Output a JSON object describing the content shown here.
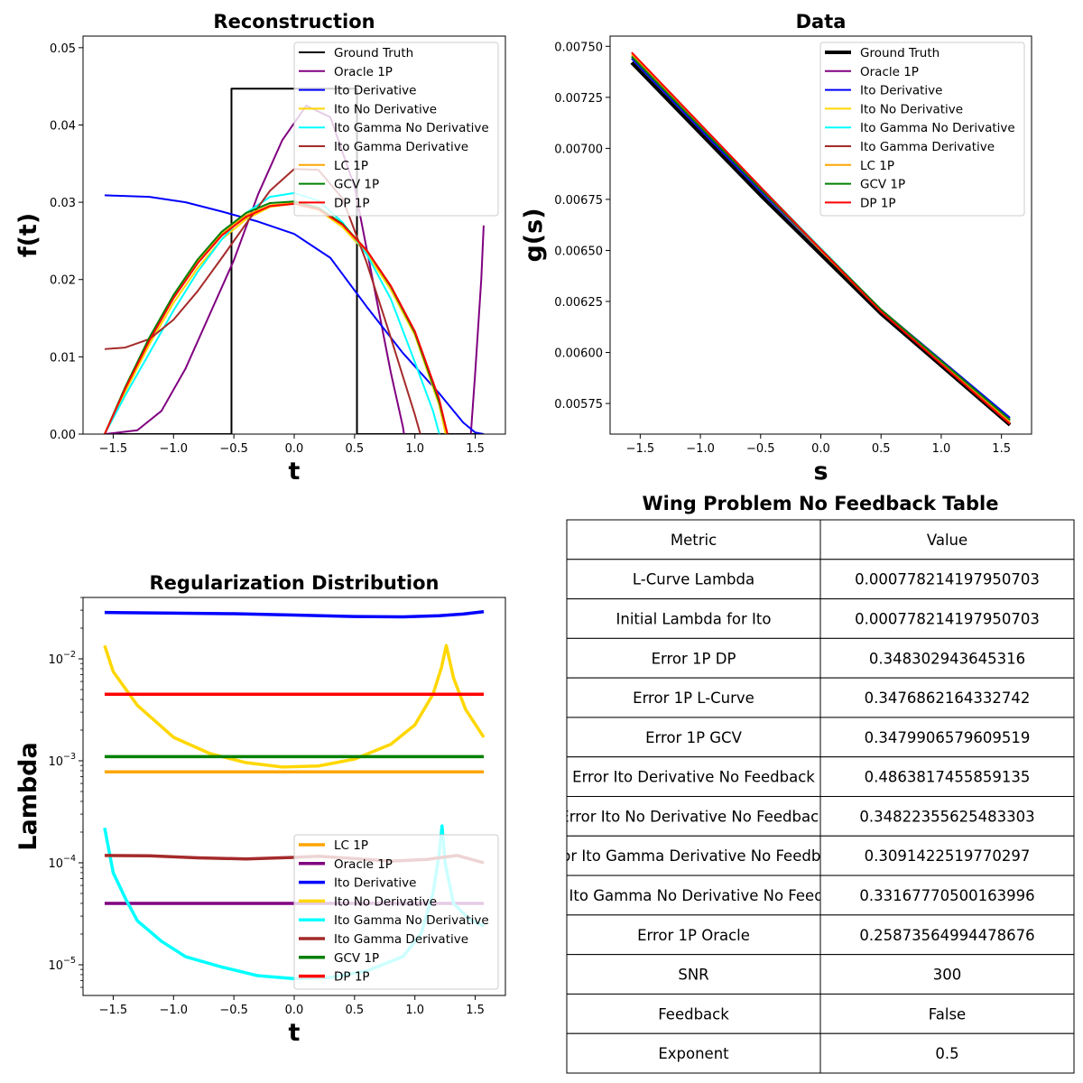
{
  "charts": [
    {
      "type": "line",
      "title": "Reconstruction",
      "xlabel": "t",
      "ylabel": "f(t)",
      "xlim": [
        -1.75,
        1.75
      ],
      "ylim": [
        0,
        0.0515
      ],
      "xticks": [
        -1.5,
        -1.0,
        -0.5,
        0.0,
        0.5,
        1.0,
        1.5
      ],
      "yticks": [
        0.0,
        0.01,
        0.02,
        0.03,
        0.04,
        0.05
      ],
      "xtick_labels": [
        "−1.5",
        "−1.0",
        "−0.5",
        "0.0",
        "0.5",
        "1.0",
        "1.5"
      ],
      "ytick_labels": [
        "0.00",
        "0.01",
        "0.02",
        "0.03",
        "0.04",
        "0.05"
      ],
      "legend": "upper-right",
      "series": [
        {
          "name": "Ground Truth",
          "color": "#000000",
          "width": 2,
          "x": [
            -1.5708,
            -0.52,
            -0.52,
            0.52,
            0.52,
            1.5708
          ],
          "y": [
            0,
            0,
            0.0447,
            0.0447,
            0,
            0
          ]
        },
        {
          "name": "Oracle 1P",
          "color": "#800080",
          "width": 2,
          "x": [
            -1.5708,
            -1.3,
            -1.1,
            -0.9,
            -0.7,
            -0.5,
            -0.3,
            -0.1,
            0.1,
            0.3,
            0.5,
            0.7,
            0.8,
            0.9,
            0.93,
            1.1,
            1.3,
            1.45,
            1.5,
            1.55,
            1.57
          ],
          "y": [
            0,
            0.0005,
            0.003,
            0.0085,
            0.0155,
            0.0225,
            0.031,
            0.038,
            0.0425,
            0.041,
            0.032,
            0.016,
            0.008,
            0.001,
            -0.002,
            -0.02,
            -0.02,
            -0.003,
            0.008,
            0.02,
            0.027
          ]
        },
        {
          "name": "Ito Derivative",
          "color": "#0000ff",
          "width": 2,
          "x": [
            -1.5708,
            -1.2,
            -0.9,
            -0.6,
            -0.3,
            0.0,
            0.3,
            0.6,
            0.9,
            1.2,
            1.4,
            1.5,
            1.5708
          ],
          "y": [
            0.0309,
            0.0307,
            0.03,
            0.0288,
            0.0275,
            0.0259,
            0.0228,
            0.0165,
            0.0105,
            0.0053,
            0.0015,
            0.0002,
            0
          ]
        },
        {
          "name": "Ito No Derivative",
          "color": "#ffd700",
          "width": 2,
          "x": [
            -1.5708,
            -1.4,
            -1.2,
            -1.0,
            -0.8,
            -0.6,
            -0.4,
            -0.2,
            0.0,
            0.2,
            0.4,
            0.6,
            0.8,
            1.0,
            1.2,
            1.27
          ],
          "y": [
            0,
            0.0055,
            0.0116,
            0.017,
            0.0215,
            0.0252,
            0.0278,
            0.0294,
            0.0298,
            0.029,
            0.0268,
            0.0234,
            0.0187,
            0.0128,
            0.0038,
            -0.001
          ]
        },
        {
          "name": "Ito Gamma No Derivative",
          "color": "#00ffff",
          "width": 2,
          "x": [
            -1.5708,
            -1.4,
            -1.2,
            -1.0,
            -0.8,
            -0.6,
            -0.4,
            -0.2,
            0.0,
            0.2,
            0.4,
            0.6,
            0.8,
            1.0,
            1.15,
            1.22
          ],
          "y": [
            0,
            0.005,
            0.0105,
            0.016,
            0.021,
            0.0252,
            0.0286,
            0.0307,
            0.0312,
            0.0302,
            0.0274,
            0.0233,
            0.0175,
            0.0093,
            0.003,
            -0.001
          ]
        },
        {
          "name": "Ito Gamma Derivative",
          "color": "#a52a2a",
          "width": 2,
          "x": [
            -1.5708,
            -1.4,
            -1.2,
            -1.0,
            -0.8,
            -0.6,
            -0.4,
            -0.2,
            0.0,
            0.2,
            0.4,
            0.6,
            0.8,
            1.0,
            1.1
          ],
          "y": [
            0.011,
            0.0112,
            0.0123,
            0.0148,
            0.0185,
            0.0228,
            0.0272,
            0.0315,
            0.0343,
            0.0342,
            0.0305,
            0.0222,
            0.0125,
            0.0025,
            -0.003
          ]
        },
        {
          "name": "LC 1P",
          "color": "#ffa500",
          "width": 2,
          "x": [
            -1.5708,
            -1.4,
            -1.2,
            -1.0,
            -0.8,
            -0.6,
            -0.4,
            -0.2,
            0.0,
            0.2,
            0.4,
            0.6,
            0.8,
            1.0,
            1.2,
            1.27
          ],
          "y": [
            0,
            0.006,
            0.0123,
            0.0178,
            0.0223,
            0.0259,
            0.0283,
            0.0296,
            0.0299,
            0.0292,
            0.0271,
            0.0237,
            0.0191,
            0.0132,
            0.0044,
            0
          ]
        },
        {
          "name": "GCV 1P",
          "color": "#008000",
          "width": 2,
          "x": [
            -1.5708,
            -1.4,
            -1.2,
            -1.0,
            -0.8,
            -0.6,
            -0.4,
            -0.2,
            0.0,
            0.2,
            0.4,
            0.6,
            0.8,
            1.0,
            1.2,
            1.27
          ],
          "y": [
            0,
            0.0061,
            0.0125,
            0.018,
            0.0226,
            0.0262,
            0.0286,
            0.0299,
            0.0301,
            0.0293,
            0.0272,
            0.0238,
            0.0191,
            0.0131,
            0.0042,
            0
          ]
        },
        {
          "name": "DP 1P",
          "color": "#ff0000",
          "width": 2,
          "x": [
            -1.5708,
            -1.4,
            -1.2,
            -1.0,
            -0.8,
            -0.6,
            -0.4,
            -0.2,
            0.0,
            0.2,
            0.4,
            0.6,
            0.8,
            1.0,
            1.2,
            1.27
          ],
          "y": [
            0,
            0.0059,
            0.0121,
            0.0176,
            0.0221,
            0.0257,
            0.0281,
            0.0295,
            0.0298,
            0.0291,
            0.0271,
            0.0238,
            0.0192,
            0.0133,
            0.0046,
            0
          ]
        }
      ]
    },
    {
      "type": "line",
      "title": "Data",
      "xlabel": "s",
      "ylabel": "g(s)",
      "xlim": [
        -1.75,
        1.75
      ],
      "ylim": [
        0.0056,
        0.00755
      ],
      "xticks": [
        -1.5,
        -1.0,
        -0.5,
        0.0,
        0.5,
        1.0,
        1.5
      ],
      "yticks": [
        0.00575,
        0.006,
        0.00625,
        0.0065,
        0.00675,
        0.007,
        0.00725,
        0.0075
      ],
      "xtick_labels": [
        "−1.5",
        "−1.0",
        "−0.5",
        "0.0",
        "0.5",
        "1.0",
        "1.5"
      ],
      "ytick_labels": [
        "0.00575",
        "0.00600",
        "0.00625",
        "0.00650",
        "0.00675",
        "0.00700",
        "0.00725",
        "0.00750"
      ],
      "legend": "upper-right",
      "series": [
        {
          "name": "Ground Truth",
          "color": "#000000",
          "width": 4,
          "x": [
            -1.5708,
            -0.5,
            0.5,
            1.5708
          ],
          "y": [
            0.00742,
            0.00677,
            0.00619,
            0.005645
          ]
        },
        {
          "name": "Oracle 1P",
          "color": "#800080",
          "width": 2,
          "x": [
            -1.5708,
            -0.5,
            0.5,
            1.5708
          ],
          "y": [
            0.00745,
            0.0068,
            0.00621,
            0.00566
          ]
        },
        {
          "name": "Ito Derivative",
          "color": "#0000ff",
          "width": 2,
          "x": [
            -1.5708,
            -0.5,
            0.5,
            1.5708
          ],
          "y": [
            0.00744,
            0.00679,
            0.00621,
            0.00568
          ]
        },
        {
          "name": "Ito No Derivative",
          "color": "#ffd700",
          "width": 2,
          "x": [
            -1.5708,
            -0.5,
            0.5,
            1.5708
          ],
          "y": [
            0.00746,
            0.00681,
            0.00621,
            0.00566
          ]
        },
        {
          "name": "Ito Gamma No Derivative",
          "color": "#00ffff",
          "width": 2,
          "x": [
            -1.5708,
            -0.5,
            0.5,
            1.5708
          ],
          "y": [
            0.00746,
            0.00681,
            0.00621,
            0.005665
          ]
        },
        {
          "name": "Ito Gamma Derivative",
          "color": "#a52a2a",
          "width": 2,
          "x": [
            -1.5708,
            -0.5,
            0.5,
            1.5708
          ],
          "y": [
            0.00745,
            0.0068,
            0.00621,
            0.00567
          ]
        },
        {
          "name": "LC 1P",
          "color": "#ffa500",
          "width": 2,
          "x": [
            -1.5708,
            -0.5,
            0.5,
            1.5708
          ],
          "y": [
            0.00746,
            0.0068,
            0.0062,
            0.00566
          ]
        },
        {
          "name": "GCV 1P",
          "color": "#008000",
          "width": 2,
          "x": [
            -1.5708,
            -0.5,
            0.5,
            1.5708
          ],
          "y": [
            0.00745,
            0.0068,
            0.00621,
            0.00567
          ]
        },
        {
          "name": "DP 1P",
          "color": "#ff0000",
          "width": 2,
          "x": [
            -1.5708,
            -0.5,
            0.5,
            1.5708
          ],
          "y": [
            0.00747,
            0.00681,
            0.0062,
            0.00565
          ]
        }
      ]
    },
    {
      "type": "line",
      "title": "Regularization Distribution",
      "xlabel": "t",
      "ylabel": "Lambda",
      "yscale": "log",
      "xlim": [
        -1.75,
        1.75
      ],
      "ylim": [
        5e-06,
        0.04
      ],
      "xticks": [
        -1.5,
        -1.0,
        -0.5,
        0.0,
        0.5,
        1.0,
        1.5
      ],
      "yticks": [
        1e-05,
        0.0001,
        0.001,
        0.01
      ],
      "xtick_labels": [
        "−1.5",
        "−1.0",
        "−0.5",
        "0.0",
        "0.5",
        "1.0",
        "1.5"
      ],
      "ytick_base": "10",
      "ytick_exponents": [
        "−5",
        "−4",
        "−3",
        "−2"
      ],
      "legend": "lower-right",
      "series": [
        {
          "name": "LC 1P",
          "color": "#ffa500",
          "width": 3.5,
          "x": [
            -1.5708,
            1.5708
          ],
          "y": [
            0.00078,
            0.00078
          ]
        },
        {
          "name": "Oracle 1P",
          "color": "#800080",
          "width": 3.5,
          "x": [
            -1.5708,
            1.5708
          ],
          "y": [
            4e-05,
            4e-05
          ]
        },
        {
          "name": "Ito Derivative",
          "color": "#0000ff",
          "width": 3.5,
          "x": [
            -1.5708,
            -1.0,
            -0.5,
            0.0,
            0.5,
            0.9,
            1.2,
            1.4,
            1.5708
          ],
          "y": [
            0.0285,
            0.0281,
            0.0277,
            0.0269,
            0.026,
            0.0258,
            0.0265,
            0.0275,
            0.029
          ]
        },
        {
          "name": "Ito No Derivative",
          "color": "#ffd700",
          "width": 3.5,
          "x": [
            -1.5708,
            -1.5,
            -1.3,
            -1.0,
            -0.7,
            -0.4,
            -0.1,
            0.2,
            0.5,
            0.8,
            1.0,
            1.15,
            1.22,
            1.26,
            1.32,
            1.42,
            1.5708
          ],
          "y": [
            0.0135,
            0.0075,
            0.0035,
            0.0017,
            0.00118,
            0.00096,
            0.00087,
            0.00089,
            0.00104,
            0.00145,
            0.00225,
            0.0045,
            0.0082,
            0.0135,
            0.0065,
            0.0032,
            0.0017
          ]
        },
        {
          "name": "Ito Gamma No Derivative",
          "color": "#00ffff",
          "width": 3.5,
          "x": [
            -1.5708,
            -1.5,
            -1.4,
            -1.3,
            -1.1,
            -0.9,
            -0.6,
            -0.3,
            0.0,
            0.3,
            0.6,
            0.9,
            1.05,
            1.15,
            1.2,
            1.225,
            1.25,
            1.32,
            1.45,
            1.5708
          ],
          "y": [
            0.00022,
            8e-05,
            4.5e-05,
            2.7e-05,
            1.7e-05,
            1.2e-05,
            9.5e-06,
            7.8e-06,
            7.3e-06,
            7.5e-06,
            8.7e-06,
            1.2e-05,
            2e-05,
            5e-05,
            0.00012,
            0.00023,
            0.0001,
            4e-05,
            2.8e-05,
            2.4e-05
          ]
        },
        {
          "name": "Ito Gamma Derivative",
          "color": "#a52a2a",
          "width": 3.5,
          "x": [
            -1.5708,
            -1.2,
            -0.8,
            -0.4,
            0.0,
            0.2,
            0.5,
            0.8,
            1.1,
            1.35,
            1.5708
          ],
          "y": [
            0.000118,
            0.000117,
            0.000112,
            0.000109,
            0.000113,
            0.000116,
            0.00011,
            0.000104,
            0.000108,
            0.000118,
            0.0001
          ]
        },
        {
          "name": "GCV 1P",
          "color": "#008000",
          "width": 3.5,
          "x": [
            -1.5708,
            1.5708
          ],
          "y": [
            0.0011,
            0.0011
          ]
        },
        {
          "name": "DP 1P",
          "color": "#ff0000",
          "width": 3.5,
          "x": [
            -1.5708,
            1.5708
          ],
          "y": [
            0.0045,
            0.0045
          ]
        }
      ]
    }
  ],
  "table": {
    "title": "Wing Problem No Feedback Table",
    "headers": [
      "Metric",
      "Value"
    ],
    "rows": [
      [
        "L-Curve Lambda",
        "0.000778214197950703"
      ],
      [
        "Initial Lambda for Ito",
        "0.000778214197950703"
      ],
      [
        "Error 1P DP",
        "0.348302943645316"
      ],
      [
        "Error 1P L-Curve",
        "0.3476862164332742"
      ],
      [
        "Error 1P GCV",
        "0.3479906579609519"
      ],
      [
        "Error Ito Derivative No Feedback",
        "0.4863817455859135"
      ],
      [
        "Error Ito No Derivative No Feedback",
        "0.34822355625483303"
      ],
      [
        "Error Ito Gamma Derivative No Feedback",
        "0.3091422519770297"
      ],
      [
        "Error Ito Gamma No Derivative No Feedback",
        "0.33167770500163996"
      ],
      [
        "Error 1P Oracle",
        "0.25873564994478676"
      ],
      [
        "SNR",
        "300"
      ],
      [
        "Feedback",
        "False"
      ],
      [
        "Exponent",
        "0.5"
      ]
    ]
  }
}
